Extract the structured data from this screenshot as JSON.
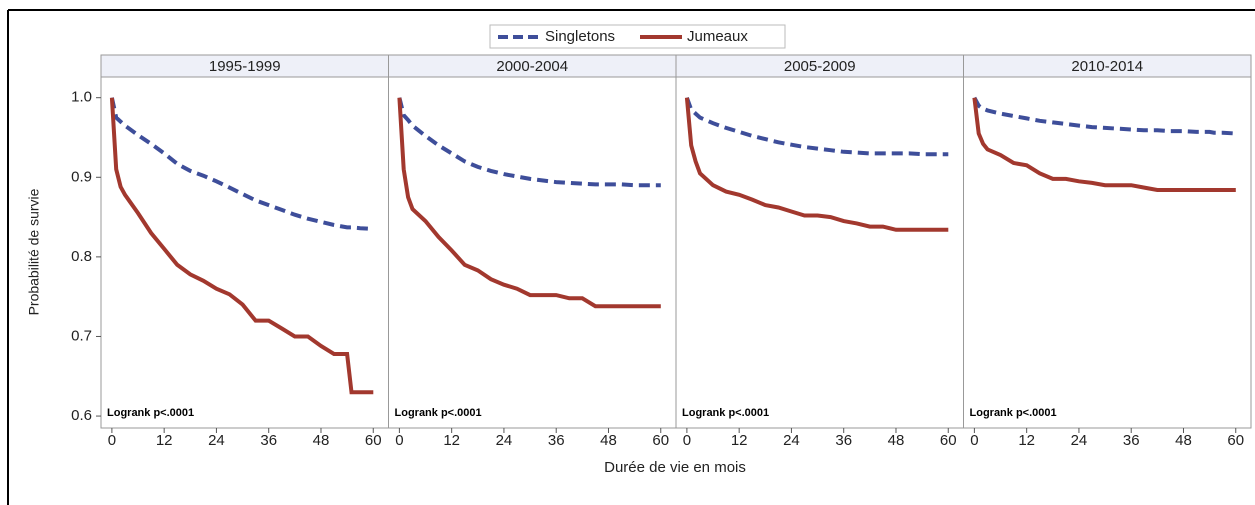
{
  "ylabel": "Probabilité de survie",
  "xlabel": "Durée de vie en mois",
  "chart_data": [
    {
      "type": "line",
      "title": "1995-1999",
      "annotation": "Logrank p<.0001",
      "x": [
        0,
        1,
        2,
        3,
        6,
        9,
        12,
        15,
        18,
        21,
        24,
        27,
        30,
        33,
        36,
        39,
        42,
        45,
        48,
        51,
        54,
        55,
        57,
        60
      ],
      "xlim": [
        -2.5,
        63.5
      ],
      "xticks": [
        0,
        12,
        24,
        36,
        48,
        60
      ],
      "ylim": [
        0.585,
        1.026
      ],
      "yticks": [
        {
          "value": 0.6,
          "label": "0.6"
        },
        {
          "value": 0.7,
          "label": "0.7"
        },
        {
          "value": 0.8,
          "label": "0.8"
        },
        {
          "value": 0.9,
          "label": "0.9"
        },
        {
          "value": 1.0,
          "label": "1.0"
        }
      ],
      "series": [
        {
          "name": "Singletons",
          "color": "#3e4e9a",
          "style": "dashed",
          "values": [
            1.0,
            0.975,
            0.97,
            0.965,
            0.953,
            0.942,
            0.93,
            0.917,
            0.908,
            0.902,
            0.895,
            0.887,
            0.879,
            0.871,
            0.865,
            0.859,
            0.853,
            0.848,
            0.844,
            0.84,
            0.837,
            0.837,
            0.836,
            0.835
          ]
        },
        {
          "name": "Jumeaux",
          "color": "#a2382e",
          "style": "solid",
          "values": [
            1.0,
            0.91,
            0.888,
            0.878,
            0.855,
            0.83,
            0.81,
            0.79,
            0.778,
            0.77,
            0.76,
            0.753,
            0.74,
            0.72,
            0.72,
            0.71,
            0.7,
            0.7,
            0.688,
            0.678,
            0.678,
            0.63,
            0.63,
            0.63
          ]
        }
      ]
    },
    {
      "type": "line",
      "title": "2000-2004",
      "annotation": "Logrank p<.0001",
      "x": [
        0,
        1,
        2,
        3,
        6,
        9,
        12,
        15,
        18,
        21,
        24,
        27,
        30,
        33,
        36,
        39,
        42,
        45,
        48,
        51,
        54,
        55,
        57,
        60
      ],
      "xlim": [
        -2.5,
        63.5
      ],
      "xticks": [
        0,
        12,
        24,
        36,
        48,
        60
      ],
      "ylim": [
        0.585,
        1.026
      ],
      "series": [
        {
          "name": "Singletons",
          "color": "#3e4e9a",
          "style": "dashed",
          "values": [
            1.0,
            0.978,
            0.972,
            0.965,
            0.952,
            0.94,
            0.93,
            0.92,
            0.913,
            0.908,
            0.904,
            0.901,
            0.898,
            0.896,
            0.894,
            0.893,
            0.892,
            0.891,
            0.891,
            0.891,
            0.89,
            0.89,
            0.89,
            0.89
          ]
        },
        {
          "name": "Jumeaux",
          "color": "#a2382e",
          "style": "solid",
          "values": [
            1.0,
            0.91,
            0.875,
            0.86,
            0.845,
            0.825,
            0.808,
            0.79,
            0.783,
            0.772,
            0.765,
            0.76,
            0.752,
            0.752,
            0.752,
            0.748,
            0.748,
            0.738,
            0.738,
            0.738,
            0.738,
            0.738,
            0.738,
            0.738
          ]
        }
      ]
    },
    {
      "type": "line",
      "title": "2005-2009",
      "annotation": "Logrank p<.0001",
      "x": [
        0,
        1,
        2,
        3,
        6,
        9,
        12,
        15,
        18,
        21,
        24,
        27,
        30,
        33,
        36,
        39,
        42,
        45,
        48,
        51,
        54,
        55,
        57,
        60
      ],
      "xlim": [
        -2.5,
        63.5
      ],
      "xticks": [
        0,
        12,
        24,
        36,
        48,
        60
      ],
      "ylim": [
        0.585,
        1.026
      ],
      "series": [
        {
          "name": "Singletons",
          "color": "#3e4e9a",
          "style": "dashed",
          "values": [
            1.0,
            0.985,
            0.98,
            0.975,
            0.968,
            0.962,
            0.957,
            0.952,
            0.948,
            0.944,
            0.941,
            0.938,
            0.936,
            0.934,
            0.932,
            0.931,
            0.93,
            0.93,
            0.93,
            0.93,
            0.929,
            0.929,
            0.929,
            0.929
          ]
        },
        {
          "name": "Jumeaux",
          "color": "#a2382e",
          "style": "solid",
          "values": [
            1.0,
            0.94,
            0.92,
            0.905,
            0.89,
            0.882,
            0.878,
            0.872,
            0.865,
            0.862,
            0.857,
            0.852,
            0.852,
            0.85,
            0.845,
            0.842,
            0.838,
            0.838,
            0.834,
            0.834,
            0.834,
            0.834,
            0.834,
            0.834
          ]
        }
      ]
    },
    {
      "type": "line",
      "title": "2010-2014",
      "annotation": "Logrank p<.0001",
      "x": [
        0,
        1,
        2,
        3,
        6,
        9,
        12,
        15,
        18,
        21,
        24,
        27,
        30,
        33,
        36,
        39,
        42,
        45,
        48,
        51,
        54,
        55,
        57,
        60
      ],
      "xlim": [
        -2.5,
        63.5
      ],
      "xticks": [
        0,
        12,
        24,
        36,
        48,
        60
      ],
      "ylim": [
        0.585,
        1.026
      ],
      "series": [
        {
          "name": "Singletons",
          "color": "#3e4e9a",
          "style": "dashed",
          "values": [
            1.0,
            0.99,
            0.986,
            0.984,
            0.98,
            0.977,
            0.974,
            0.971,
            0.969,
            0.967,
            0.965,
            0.963,
            0.962,
            0.961,
            0.96,
            0.959,
            0.959,
            0.958,
            0.958,
            0.957,
            0.957,
            0.956,
            0.956,
            0.955
          ]
        },
        {
          "name": "Jumeaux",
          "color": "#a2382e",
          "style": "solid",
          "values": [
            1.0,
            0.955,
            0.942,
            0.935,
            0.928,
            0.918,
            0.915,
            0.905,
            0.898,
            0.898,
            0.895,
            0.893,
            0.89,
            0.89,
            0.89,
            0.887,
            0.884,
            0.884,
            0.884,
            0.884,
            0.884,
            0.884,
            0.884,
            0.884
          ]
        }
      ]
    }
  ]
}
